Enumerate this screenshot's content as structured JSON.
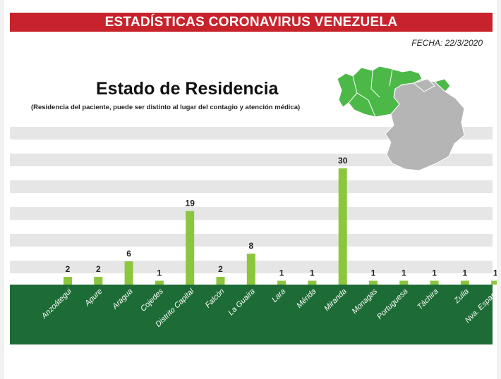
{
  "header": {
    "banner": "ESTADÍSTICAS CORONAVIRUS VENEZUELA"
  },
  "meta": {
    "date_label": "FECHA: 22/3/2020"
  },
  "colors": {
    "banner": "#c8232c",
    "bar": "#8cc63f",
    "axis_band": "#1d6b35",
    "stripe": "#e6e6e6",
    "map_highlight": "#4cb848",
    "map_other": "#b5b5b5"
  },
  "chart_data": {
    "type": "bar",
    "title": "Estado de Residencia",
    "subtitle": "(Residencia del paciente, puede ser distinto al lugar del contagio y atención médica)",
    "categories": [
      "Anzoátegui",
      "Apure",
      "Aragua",
      "Cojedes",
      "Distrito Capital",
      "Falcón",
      "La Guaira",
      "Lara",
      "Mérida",
      "Miranda",
      "Monagas",
      "Portuguesa",
      "Táchira",
      "Zulia",
      "Nva. Esparto"
    ],
    "values": [
      2,
      2,
      6,
      1,
      19,
      2,
      8,
      1,
      1,
      30,
      1,
      1,
      1,
      1,
      1
    ],
    "ylim": [
      0,
      30
    ],
    "grid": "horizontal stripes",
    "data_labels": true
  }
}
